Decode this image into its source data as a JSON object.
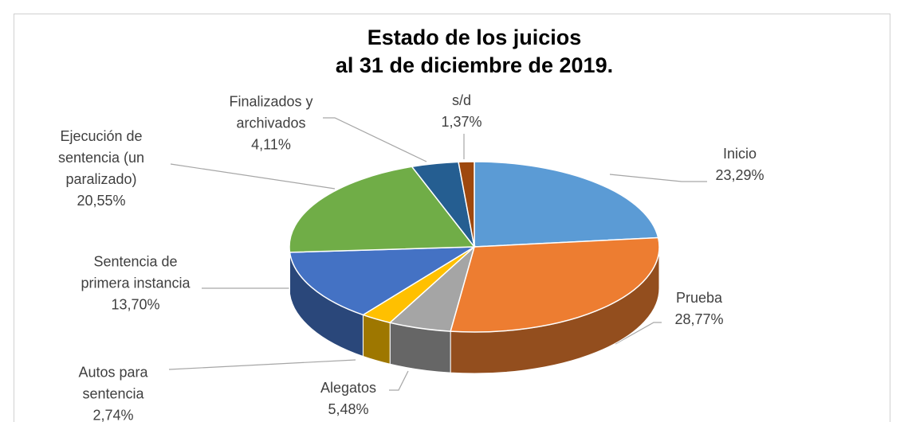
{
  "chart_data": {
    "type": "pie",
    "title": "Estado de los juicios\nal 31 de diciembre de 2019.",
    "categories": [
      "Inicio",
      "Prueba",
      "Alegatos",
      "Autos para\nsentencia",
      "Sentencia de\nprimera instancia",
      "Ejecución de\nsentencia (un\nparalizado)",
      "Finalizados y\narchivados",
      "s/d"
    ],
    "values": [
      23.29,
      28.77,
      5.48,
      2.74,
      13.7,
      20.55,
      4.11,
      1.37
    ],
    "value_labels": [
      "23,29%",
      "28,77%",
      "5,48%",
      "2,74%",
      "13,70%",
      "20,55%",
      "4,11%",
      "1,37%"
    ],
    "colors": [
      "#5b9bd5",
      "#ed7d31",
      "#a5a5a5",
      "#ffc000",
      "#4472c4",
      "#70ad47",
      "#255e91",
      "#9e480e"
    ]
  }
}
